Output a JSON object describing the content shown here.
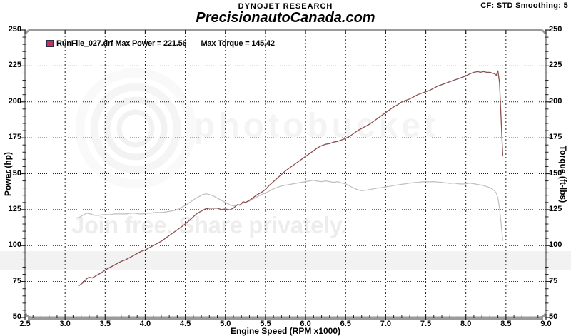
{
  "header": {
    "brand": "DYNOJET RESEARCH",
    "settings": "CF: STD  Smoothing: 5",
    "site": "PrecisionautoCanada.com"
  },
  "legend": {
    "run_and_power": "RunFile_027.drf Max Power = 221.56",
    "max_torque": "Max Torque = 145.42",
    "swatch_fill": "#c23358",
    "swatch_border": "#2b2b4e"
  },
  "watermark": {
    "logo_text": "photobucket",
    "tagline": "Join free. Share privately."
  },
  "chart_data": {
    "type": "line",
    "title": "DYNOJET RESEARCH",
    "subtitle": "PrecisionautoCanada.com",
    "xlabel": "Engine Speed (RPM x1000)",
    "ylabel_left": "Power (hp)",
    "ylabel_right": "Torque (ft-lbs)",
    "xlim": [
      2.5,
      9.0
    ],
    "ylim": [
      50,
      250
    ],
    "grid": true,
    "legend_position": "top-left",
    "x_tick_labels": [
      "2.5",
      "3.0",
      "3.5",
      "4.0",
      "4.5",
      "5.0",
      "5.5",
      "6.0",
      "6.5",
      "7.0",
      "7.5",
      "8.0",
      "8.5",
      "9.0"
    ],
    "y_tick_labels": [
      "250",
      "225",
      "200",
      "175",
      "150",
      "125",
      "100",
      "75",
      "50"
    ],
    "x_minor_step": 0.1,
    "y_minor_step": 5,
    "series": [
      {
        "name": "Torque (ft-lbs)",
        "color": "#c2bebe",
        "max_value": 145.42,
        "points": [
          [
            3.17,
            119.5
          ],
          [
            3.22,
            121
          ],
          [
            3.27,
            122.5
          ],
          [
            3.32,
            122
          ],
          [
            3.37,
            121
          ],
          [
            3.42,
            121
          ],
          [
            3.47,
            121.5
          ],
          [
            3.52,
            121.5
          ],
          [
            3.57,
            121.5
          ],
          [
            3.62,
            122
          ],
          [
            3.67,
            122
          ],
          [
            3.72,
            122
          ],
          [
            3.77,
            122
          ],
          [
            3.82,
            122.5
          ],
          [
            3.87,
            122.5
          ],
          [
            3.92,
            122
          ],
          [
            3.97,
            122
          ],
          [
            4.02,
            122.5
          ],
          [
            4.07,
            122.5
          ],
          [
            4.12,
            123
          ],
          [
            4.17,
            123
          ],
          [
            4.22,
            123
          ],
          [
            4.27,
            123.5
          ],
          [
            4.32,
            124
          ],
          [
            4.37,
            124.5
          ],
          [
            4.42,
            125.5
          ],
          [
            4.47,
            127
          ],
          [
            4.52,
            128.5
          ],
          [
            4.57,
            130.5
          ],
          [
            4.62,
            132.5
          ],
          [
            4.67,
            134
          ],
          [
            4.72,
            135.5
          ],
          [
            4.76,
            136
          ],
          [
            4.8,
            135.5
          ],
          [
            4.85,
            134.5
          ],
          [
            4.9,
            133
          ],
          [
            4.95,
            131.5
          ],
          [
            5.0,
            130
          ],
          [
            5.05,
            128.5
          ],
          [
            5.1,
            127.5
          ],
          [
            5.15,
            128
          ],
          [
            5.2,
            129
          ],
          [
            5.25,
            130
          ],
          [
            5.3,
            131
          ],
          [
            5.35,
            132.5
          ],
          [
            5.4,
            134
          ],
          [
            5.45,
            135.5
          ],
          [
            5.5,
            136.5
          ],
          [
            5.55,
            138
          ],
          [
            5.6,
            139.5
          ],
          [
            5.65,
            140.5
          ],
          [
            5.7,
            141.5
          ],
          [
            5.75,
            142
          ],
          [
            5.8,
            142.5
          ],
          [
            5.85,
            143
          ],
          [
            5.9,
            143.5
          ],
          [
            5.95,
            144
          ],
          [
            6.0,
            144.5
          ],
          [
            6.05,
            145
          ],
          [
            6.1,
            145.42
          ],
          [
            6.15,
            144.8
          ],
          [
            6.2,
            144.5
          ],
          [
            6.25,
            145
          ],
          [
            6.3,
            144.5
          ],
          [
            6.35,
            144
          ],
          [
            6.4,
            144.5
          ],
          [
            6.45,
            143.5
          ],
          [
            6.5,
            143
          ],
          [
            6.55,
            141.5
          ],
          [
            6.6,
            140
          ],
          [
            6.65,
            138.8
          ],
          [
            6.7,
            138.2
          ],
          [
            6.75,
            138.5
          ],
          [
            6.8,
            139
          ],
          [
            6.85,
            139.5
          ],
          [
            6.9,
            140
          ],
          [
            6.95,
            140.3
          ],
          [
            7.0,
            140.8
          ],
          [
            7.05,
            141.2
          ],
          [
            7.1,
            141.8
          ],
          [
            7.15,
            142.2
          ],
          [
            7.2,
            142.6
          ],
          [
            7.25,
            143
          ],
          [
            7.3,
            143.5
          ],
          [
            7.35,
            143.8
          ],
          [
            7.4,
            144
          ],
          [
            7.45,
            144.3
          ],
          [
            7.5,
            144.5
          ],
          [
            7.55,
            144.3
          ],
          [
            7.6,
            144.5
          ],
          [
            7.65,
            144.2
          ],
          [
            7.7,
            144
          ],
          [
            7.75,
            143.6
          ],
          [
            7.8,
            143.2
          ],
          [
            7.85,
            143.5
          ],
          [
            7.9,
            143
          ],
          [
            7.95,
            142.8
          ],
          [
            8.0,
            143
          ],
          [
            8.05,
            143.4
          ],
          [
            8.1,
            143
          ],
          [
            8.15,
            142.5
          ],
          [
            8.2,
            142
          ],
          [
            8.25,
            141.2
          ],
          [
            8.3,
            140.2
          ],
          [
            8.33,
            139.2
          ],
          [
            8.36,
            138
          ],
          [
            8.38,
            136.5
          ],
          [
            8.4,
            133
          ],
          [
            8.42,
            126
          ],
          [
            8.44,
            115
          ],
          [
            8.46,
            103.5
          ]
        ]
      },
      {
        "name": "Power (hp)",
        "color": "#8a5151",
        "max_value": 221.56,
        "points": [
          [
            3.17,
            72
          ],
          [
            3.22,
            74
          ],
          [
            3.27,
            77
          ],
          [
            3.3,
            78
          ],
          [
            3.34,
            77.5
          ],
          [
            3.4,
            79.5
          ],
          [
            3.45,
            81
          ],
          [
            3.5,
            83
          ],
          [
            3.55,
            84.5
          ],
          [
            3.6,
            86
          ],
          [
            3.65,
            87.5
          ],
          [
            3.7,
            89
          ],
          [
            3.75,
            90
          ],
          [
            3.8,
            91.5
          ],
          [
            3.85,
            93
          ],
          [
            3.9,
            94.5
          ],
          [
            3.95,
            96
          ],
          [
            4.0,
            97
          ],
          [
            4.05,
            98.5
          ],
          [
            4.1,
            100
          ],
          [
            4.15,
            101.5
          ],
          [
            4.2,
            103
          ],
          [
            4.25,
            105
          ],
          [
            4.3,
            107
          ],
          [
            4.35,
            109
          ],
          [
            4.4,
            111
          ],
          [
            4.45,
            113
          ],
          [
            4.5,
            115
          ],
          [
            4.55,
            117.5
          ],
          [
            4.6,
            120
          ],
          [
            4.65,
            122.5
          ],
          [
            4.7,
            124
          ],
          [
            4.75,
            125.5
          ],
          [
            4.8,
            126
          ],
          [
            4.85,
            126
          ],
          [
            4.9,
            126
          ],
          [
            4.95,
            125
          ],
          [
            5.0,
            125.5
          ],
          [
            5.05,
            124.8
          ],
          [
            5.1,
            126
          ],
          [
            5.15,
            128.5
          ],
          [
            5.18,
            128
          ],
          [
            5.22,
            130.5
          ],
          [
            5.25,
            130
          ],
          [
            5.3,
            131.5
          ],
          [
            5.35,
            133.5
          ],
          [
            5.4,
            135.5
          ],
          [
            5.45,
            137
          ],
          [
            5.5,
            139
          ],
          [
            5.55,
            142
          ],
          [
            5.6,
            144.5
          ],
          [
            5.65,
            147
          ],
          [
            5.7,
            149.5
          ],
          [
            5.75,
            152
          ],
          [
            5.8,
            154
          ],
          [
            5.85,
            156
          ],
          [
            5.9,
            158
          ],
          [
            5.95,
            160
          ],
          [
            6.0,
            162
          ],
          [
            6.05,
            164
          ],
          [
            6.1,
            166
          ],
          [
            6.15,
            168
          ],
          [
            6.2,
            169.5
          ],
          [
            6.25,
            170.5
          ],
          [
            6.3,
            171
          ],
          [
            6.35,
            172
          ],
          [
            6.4,
            172.5
          ],
          [
            6.45,
            173.5
          ],
          [
            6.5,
            174.5
          ],
          [
            6.55,
            176
          ],
          [
            6.6,
            178
          ],
          [
            6.65,
            180
          ],
          [
            6.7,
            181.5
          ],
          [
            6.75,
            183
          ],
          [
            6.8,
            184.5
          ],
          [
            6.85,
            186.5
          ],
          [
            6.9,
            188.5
          ],
          [
            6.95,
            190.5
          ],
          [
            7.0,
            192.5
          ],
          [
            7.05,
            194.5
          ],
          [
            7.1,
            196.5
          ],
          [
            7.15,
            198
          ],
          [
            7.2,
            200
          ],
          [
            7.25,
            201
          ],
          [
            7.3,
            202
          ],
          [
            7.35,
            203.5
          ],
          [
            7.4,
            205
          ],
          [
            7.45,
            206
          ],
          [
            7.5,
            207
          ],
          [
            7.55,
            208
          ],
          [
            7.6,
            209.5
          ],
          [
            7.65,
            211
          ],
          [
            7.7,
            212
          ],
          [
            7.75,
            213
          ],
          [
            7.8,
            214
          ],
          [
            7.85,
            215
          ],
          [
            7.9,
            216
          ],
          [
            7.95,
            217
          ],
          [
            8.0,
            218
          ],
          [
            8.05,
            219.5
          ],
          [
            8.1,
            220.5
          ],
          [
            8.15,
            221
          ],
          [
            8.18,
            220.5
          ],
          [
            8.22,
            221
          ],
          [
            8.26,
            220.5
          ],
          [
            8.3,
            220.5
          ],
          [
            8.33,
            220
          ],
          [
            8.36,
            219.5
          ],
          [
            8.38,
            218.5
          ],
          [
            8.4,
            221.56
          ],
          [
            8.42,
            213
          ],
          [
            8.43,
            200
          ],
          [
            8.44,
            188
          ],
          [
            8.45,
            175
          ],
          [
            8.46,
            163
          ]
        ]
      }
    ]
  }
}
